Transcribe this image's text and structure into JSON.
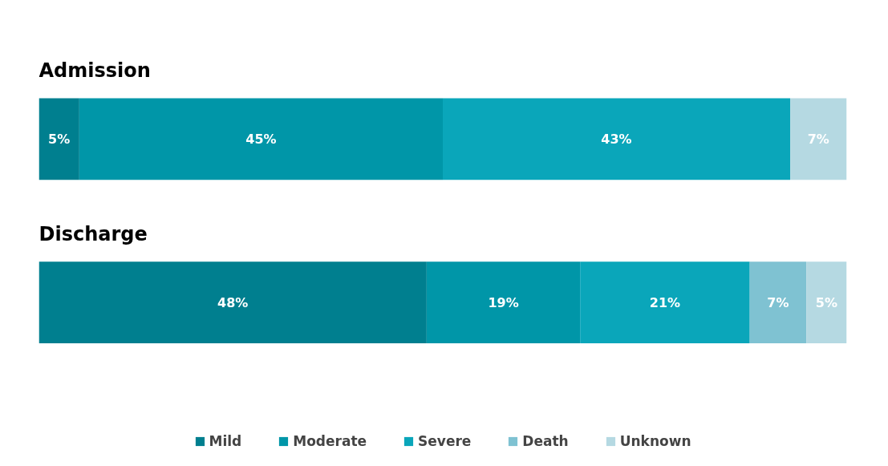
{
  "chart_data": {
    "type": "bar",
    "orientation": "horizontal",
    "stacked": true,
    "categories": [
      "Admission",
      "Discharge"
    ],
    "series": [
      {
        "name": "Mild",
        "color": "#007f8f",
        "values": [
          5,
          48
        ],
        "value_labels": [
          "5%",
          "48%"
        ]
      },
      {
        "name": "Moderate",
        "color": "#0096a8",
        "values": [
          45,
          19
        ],
        "value_labels": [
          "45%",
          "19%"
        ]
      },
      {
        "name": "Severe",
        "color": "#0aa6ba",
        "values": [
          43,
          21
        ],
        "value_labels": [
          "43%",
          "21%"
        ]
      },
      {
        "name": "Death",
        "color": "#7fc2d2",
        "values": [
          null,
          7
        ],
        "value_labels": [
          null,
          "7%"
        ]
      },
      {
        "name": "Unknown",
        "color": "#b5d9e2",
        "values": [
          7,
          5
        ],
        "value_labels": [
          "7%",
          "5%"
        ]
      }
    ],
    "xlim": [
      0,
      100
    ],
    "legend": "bottom",
    "tick_labels": false
  }
}
